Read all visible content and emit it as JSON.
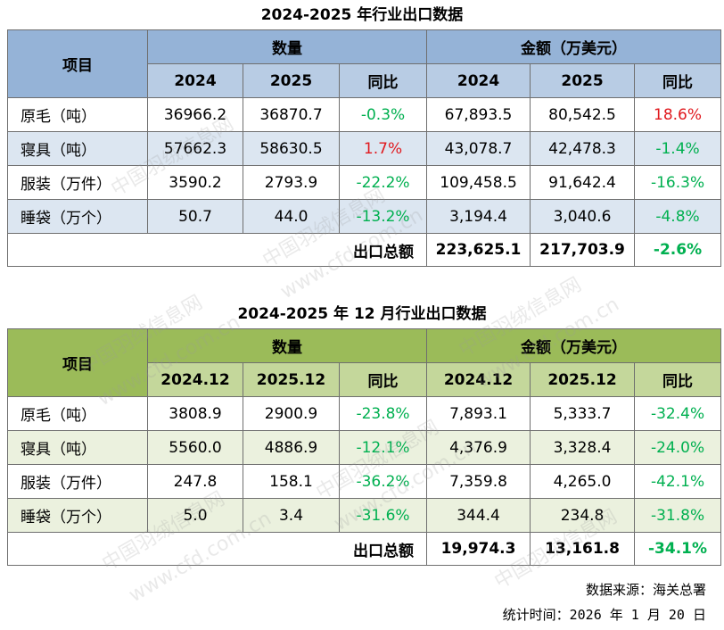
{
  "table1": {
    "title": "2024-2025 年行业出口数据",
    "item_header": "项目",
    "qty_header": "数量",
    "amt_header": "金额（万美元）",
    "sub": [
      "2024",
      "2025",
      "同比",
      "2024",
      "2025",
      "同比"
    ],
    "rows": [
      {
        "item": "原毛（吨）",
        "q2024": "36966.2",
        "q2025": "36870.7",
        "qyoy": "-0.3%",
        "a2024": "67,893.5",
        "a2025": "80,542.5",
        "ayoy": "18.6%"
      },
      {
        "item": "寝具（吨）",
        "q2024": "57662.3",
        "q2025": "58630.5",
        "qyoy": "1.7%",
        "a2024": "43,078.7",
        "a2025": "42,478.3",
        "ayoy": "-1.4%"
      },
      {
        "item": "服装（万件）",
        "q2024": "3590.2",
        "q2025": "2793.9",
        "qyoy": "-22.2%",
        "a2024": "109,458.5",
        "a2025": "91,642.4",
        "ayoy": "-16.3%"
      },
      {
        "item": "睡袋（万个）",
        "q2024": "50.7",
        "q2025": "44.0",
        "qyoy": "-13.2%",
        "a2024": "3,194.4",
        "a2025": "3,040.6",
        "ayoy": "-4.8%"
      }
    ],
    "total": {
      "label": "出口总额",
      "a2024": "223,625.1",
      "a2025": "217,703.9",
      "ayoy": "-2.6%"
    }
  },
  "table2": {
    "title": "2024-2025 年 12 月行业出口数据",
    "item_header": "项目",
    "qty_header": "数量",
    "amt_header": "金额（万美元）",
    "sub": [
      "2024.12",
      "2025.12",
      "同比",
      "2024.12",
      "2025.12",
      "同比"
    ],
    "rows": [
      {
        "item": "原毛（吨）",
        "q2024": "3808.9",
        "q2025": "2900.9",
        "qyoy": "-23.8%",
        "a2024": "7,893.1",
        "a2025": "5,333.7",
        "ayoy": "-32.4%"
      },
      {
        "item": "寝具（吨）",
        "q2024": "5560.0",
        "q2025": "4886.9",
        "qyoy": "-12.1%",
        "a2024": "4,376.9",
        "a2025": "3,328.4",
        "ayoy": "-24.0%"
      },
      {
        "item": "服装（万件）",
        "q2024": "247.8",
        "q2025": "158.1",
        "qyoy": "-36.2%",
        "a2024": "7,359.8",
        "a2025": "4,265.0",
        "ayoy": "-42.1%"
      },
      {
        "item": "睡袋（万个）",
        "q2024": "5.0",
        "q2025": "3.4",
        "qyoy": "-31.6%",
        "a2024": "344.4",
        "a2025": "234.8",
        "ayoy": "-31.8%"
      }
    ],
    "total": {
      "label": "出口总额",
      "a2024": "19,974.3",
      "a2025": "13,161.8",
      "ayoy": "-34.1%"
    }
  },
  "footer": {
    "source": "数据来源：海关总署",
    "time": "统计时间：2026 年 1 月 20 日"
  },
  "watermark": {
    "text_cn": "中国羽绒信息网",
    "text_url": "www.cfd.com.cn"
  },
  "colors": {
    "t1_header": "#95b3d7",
    "t1_subheader": "#b8cce4",
    "t1_alt": "#dce6f1",
    "t2_header": "#9bbb59",
    "t2_subheader": "#c4d79b",
    "t2_alt": "#ebf1de",
    "positive": "#e0191e",
    "negative": "#00b050"
  }
}
